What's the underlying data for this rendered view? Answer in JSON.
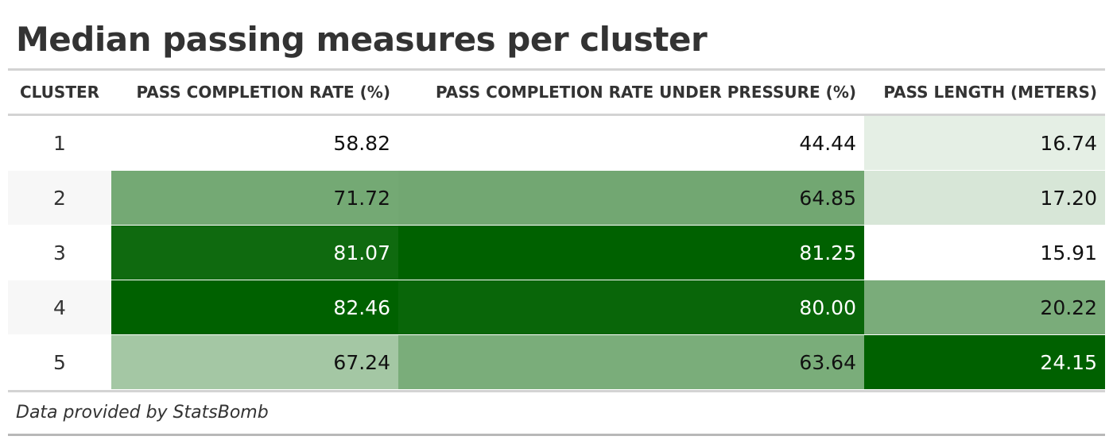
{
  "chart_data": {
    "type": "table",
    "title": "Median passing measures per cluster",
    "source_note": "Data provided by StatsBomb",
    "columns": [
      "CLUSTER",
      "PASS COMPLETION RATE (%)",
      "PASS COMPLETION RATE UNDER PRESSURE (%)",
      "PASS LENGTH (METERS)"
    ],
    "rows": [
      {
        "cluster": "1",
        "values": [
          "58.82",
          "44.44",
          "16.74"
        ]
      },
      {
        "cluster": "2",
        "values": [
          "71.72",
          "64.85",
          "17.20"
        ]
      },
      {
        "cluster": "3",
        "values": [
          "81.07",
          "81.25",
          "15.91"
        ]
      },
      {
        "cluster": "4",
        "values": [
          "82.46",
          "80.00",
          "20.22"
        ]
      },
      {
        "cluster": "5",
        "values": [
          "67.24",
          "63.64",
          "24.15"
        ]
      }
    ],
    "color_scale": {
      "low": "#ffffff",
      "high": "#006100",
      "text_dark": "#111111",
      "text_light": "#ffffff"
    }
  }
}
